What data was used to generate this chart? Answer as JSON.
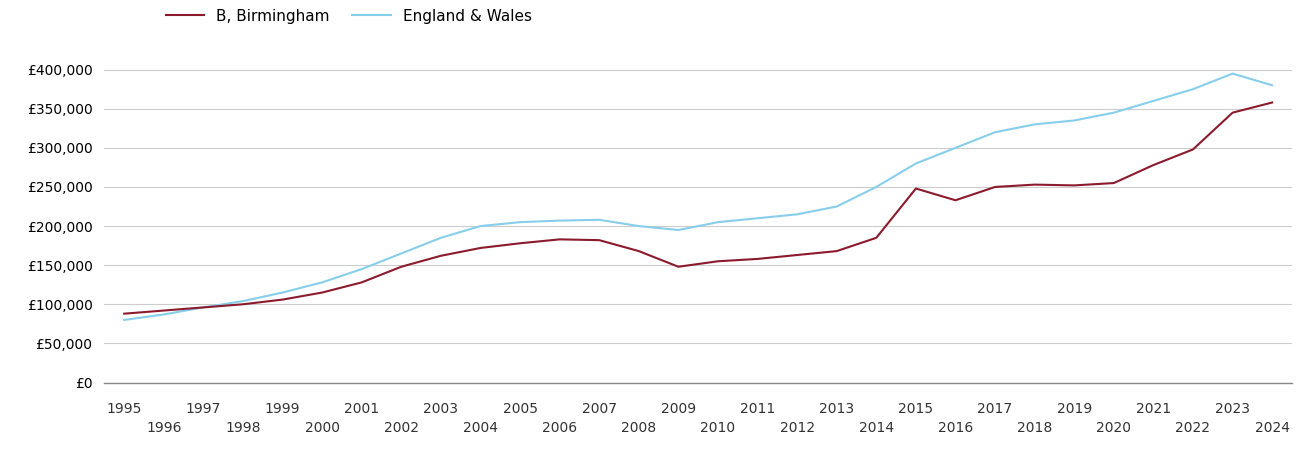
{
  "birmingham": {
    "years": [
      1995,
      1996,
      1997,
      1998,
      1999,
      2000,
      2001,
      2002,
      2003,
      2004,
      2005,
      2006,
      2007,
      2008,
      2009,
      2010,
      2011,
      2012,
      2013,
      2014,
      2015,
      2016,
      2017,
      2018,
      2019,
      2020,
      2021,
      2022,
      2023,
      2024
    ],
    "values": [
      88000,
      92000,
      96000,
      100000,
      106000,
      115000,
      128000,
      148000,
      162000,
      172000,
      178000,
      183000,
      182000,
      168000,
      148000,
      155000,
      158000,
      163000,
      168000,
      185000,
      248000,
      233000,
      250000,
      253000,
      252000,
      255000,
      278000,
      298000,
      345000,
      358000
    ]
  },
  "england_wales": {
    "years": [
      1995,
      1996,
      1997,
      1998,
      1999,
      2000,
      2001,
      2002,
      2003,
      2004,
      2005,
      2006,
      2007,
      2008,
      2009,
      2010,
      2011,
      2012,
      2013,
      2014,
      2015,
      2016,
      2017,
      2018,
      2019,
      2020,
      2021,
      2022,
      2023,
      2024
    ],
    "values": [
      80000,
      87000,
      96000,
      104000,
      115000,
      128000,
      145000,
      165000,
      185000,
      200000,
      205000,
      207000,
      208000,
      200000,
      195000,
      205000,
      210000,
      215000,
      225000,
      250000,
      280000,
      300000,
      320000,
      330000,
      335000,
      345000,
      360000,
      375000,
      395000,
      380000
    ]
  },
  "birmingham_color": "#8B1A2D",
  "england_wales_color": "#87CEEB",
  "birmingham_label": "B, Birmingham",
  "england_wales_label": "England & Wales",
  "ylim": [
    0,
    420000
  ],
  "yticks": [
    0,
    50000,
    100000,
    150000,
    200000,
    250000,
    300000,
    350000,
    400000
  ],
  "background_color": "#ffffff",
  "grid_color": "#cccccc",
  "line_width": 1.5,
  "legend_fontsize": 11,
  "tick_fontsize": 10
}
